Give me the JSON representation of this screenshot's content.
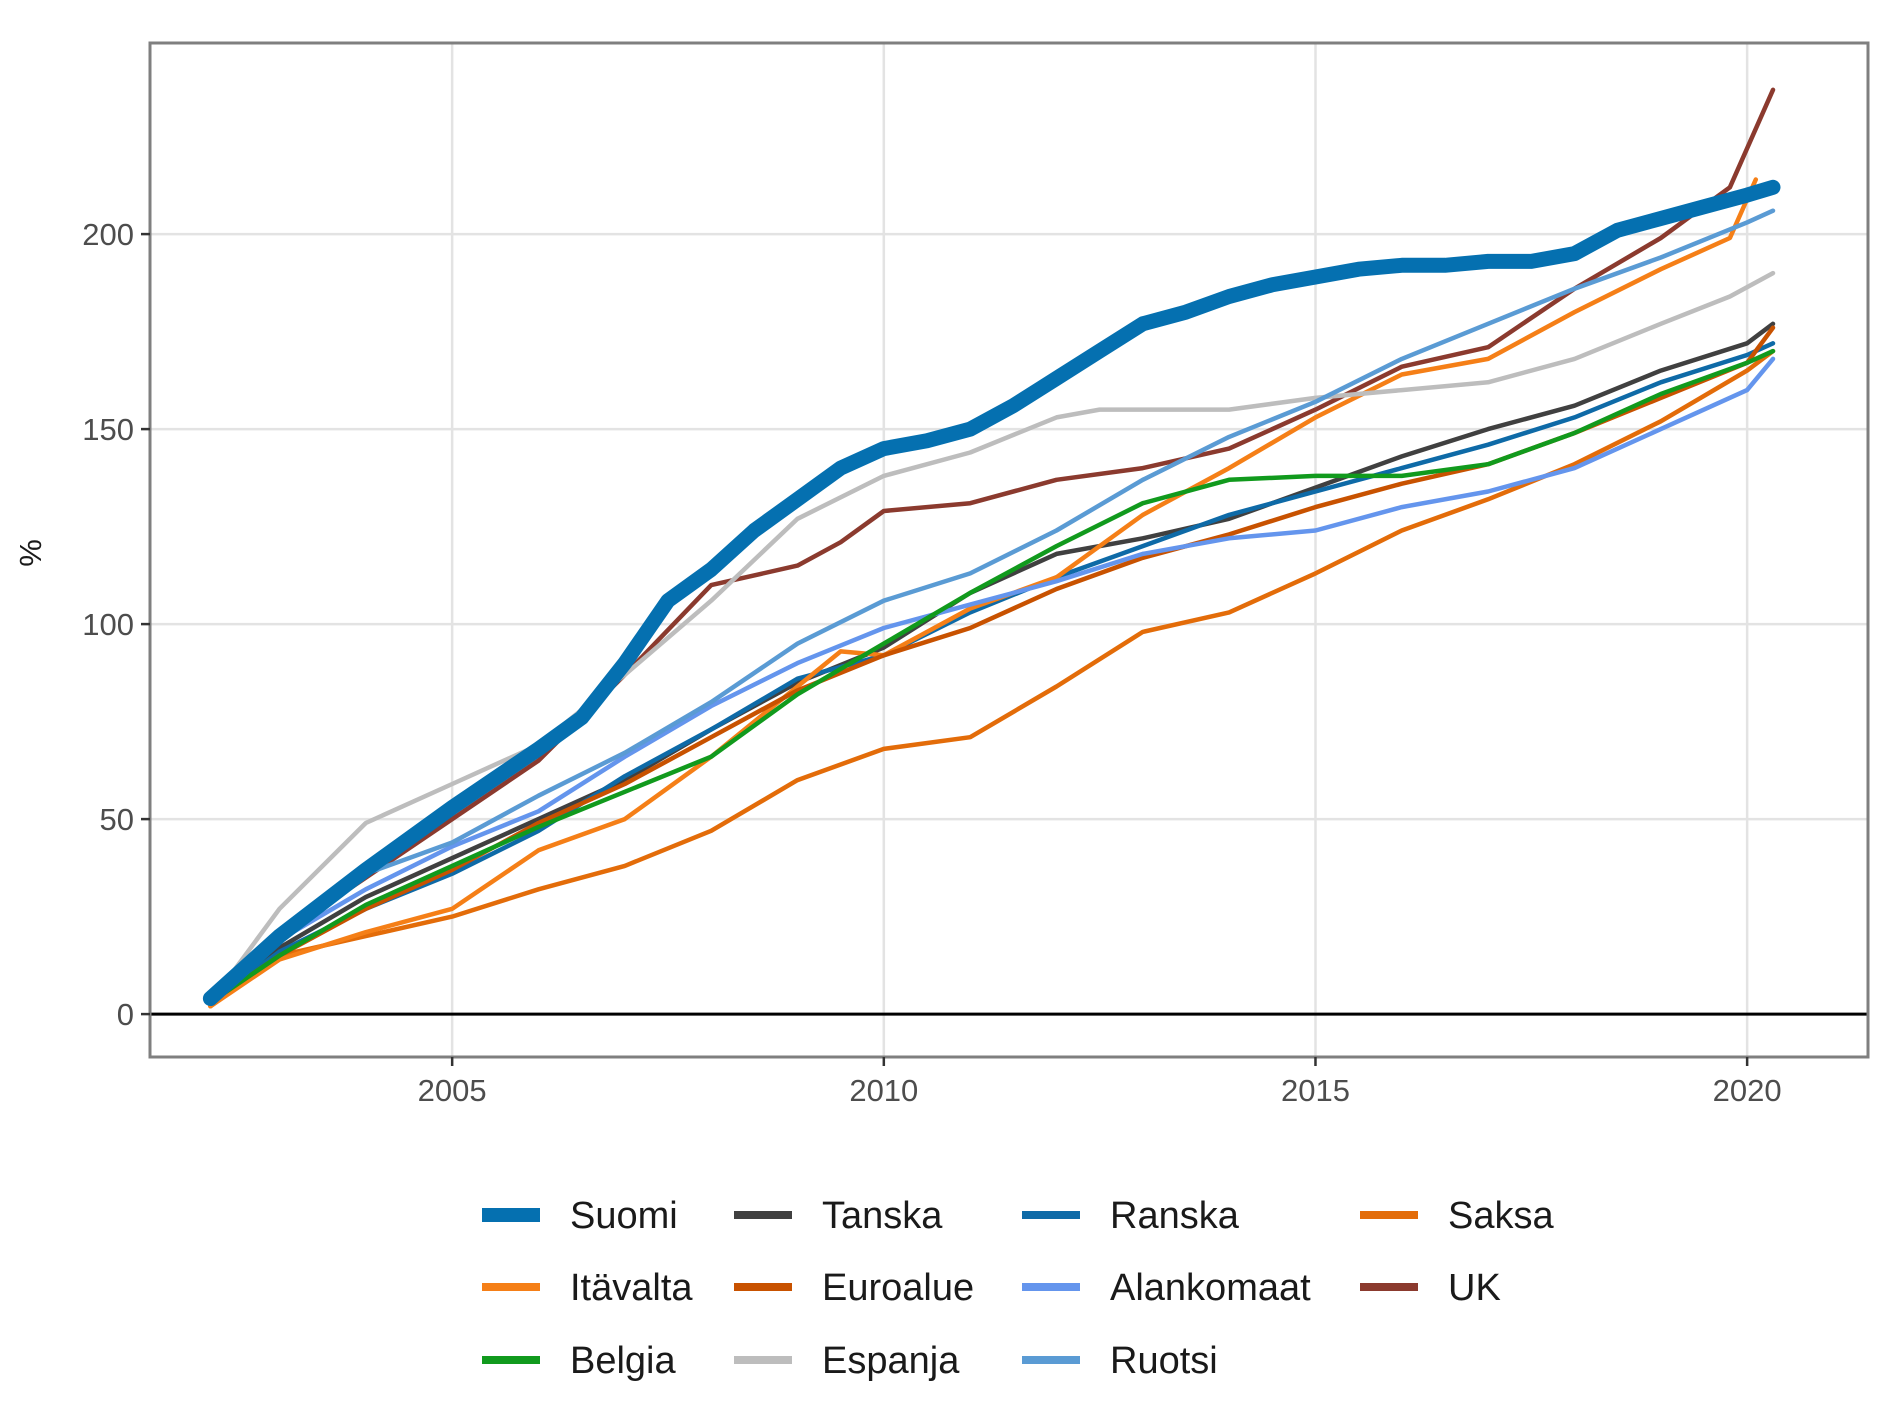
{
  "chart_data": {
    "type": "line",
    "title": "",
    "xlabel": "",
    "ylabel": "%",
    "xlim": [
      2001.5,
      2021.4
    ],
    "ylim": [
      -11,
      249
    ],
    "x_ticks": [
      2005,
      2010,
      2015,
      2020
    ],
    "x_tick_labels": [
      "2005",
      "2010",
      "2015",
      "2020"
    ],
    "y_ticks": [
      0,
      50,
      100,
      150,
      200
    ],
    "y_tick_labels": [
      "0",
      "50",
      "100",
      "150",
      "200"
    ],
    "grid": true,
    "reference_line": 0,
    "legend_position": "bottom",
    "series": [
      {
        "name": "Suomi",
        "color": "#0570b0",
        "emphasis": true,
        "x": [
          2002.2,
          2003,
          2004,
          2005,
          2006,
          2006.5,
          2007,
          2007.5,
          2008,
          2008.5,
          2009,
          2009.5,
          2010,
          2010.5,
          2011,
          2011.5,
          2012,
          2012.5,
          2013,
          2013.5,
          2014,
          2014.5,
          2015,
          2015.5,
          2016,
          2016.5,
          2017,
          2017.5,
          2018,
          2018.5,
          2019,
          2019.5,
          2020,
          2020.3
        ],
        "values": [
          4,
          20,
          37,
          53,
          68,
          76,
          90,
          106,
          114,
          124,
          132,
          140,
          145,
          147,
          150,
          156,
          163,
          170,
          177,
          180,
          184,
          187,
          189,
          191,
          192,
          192,
          193,
          193,
          195,
          201,
          204,
          207,
          210,
          212
        ]
      },
      {
        "name": "Tanska",
        "color": "#404040",
        "x": [
          2002.2,
          2003,
          2004,
          2005,
          2006,
          2007,
          2008,
          2009,
          2010,
          2011,
          2012,
          2013,
          2014,
          2015,
          2016,
          2017,
          2018,
          2019,
          2020,
          2020.3
        ],
        "values": [
          3,
          17,
          30,
          40,
          50,
          60,
          73,
          85,
          94,
          108,
          118,
          122,
          127,
          135,
          143,
          150,
          156,
          165,
          172,
          177
        ]
      },
      {
        "name": "Ranska",
        "color": "#0e6aa7",
        "x": [
          2002.2,
          2003,
          2004,
          2005,
          2006,
          2007,
          2008,
          2009,
          2010,
          2011,
          2012,
          2013,
          2014,
          2015,
          2016,
          2017,
          2018,
          2019,
          2020,
          2020.3
        ],
        "values": [
          3,
          16,
          27,
          36,
          47,
          61,
          73,
          86,
          92,
          103,
          112,
          120,
          128,
          134,
          140,
          146,
          153,
          162,
          169,
          172
        ]
      },
      {
        "name": "Saksa",
        "color": "#e36c09",
        "x": [
          2002.2,
          2003,
          2004,
          2005,
          2006,
          2007,
          2008,
          2009,
          2010,
          2011,
          2012,
          2013,
          2014,
          2015,
          2016,
          2017,
          2018,
          2019,
          2020,
          2020.3
        ],
        "values": [
          2,
          15,
          20,
          25,
          32,
          38,
          47,
          60,
          68,
          71,
          84,
          98,
          103,
          113,
          124,
          132,
          141,
          152,
          165,
          170
        ]
      },
      {
        "name": "Itävalta",
        "color": "#f57f17",
        "x": [
          2002.2,
          2003,
          2004,
          2005,
          2006,
          2007,
          2008,
          2009,
          2009.5,
          2010,
          2011,
          2012,
          2013,
          2014,
          2015,
          2016,
          2017,
          2018,
          2019,
          2019.8,
          2020.1
        ],
        "values": [
          2,
          14,
          21,
          27,
          42,
          50,
          66,
          84,
          93,
          92,
          104,
          112,
          128,
          140,
          153,
          164,
          168,
          180,
          191,
          199,
          214
        ]
      },
      {
        "name": "Euroalue",
        "color": "#c85200",
        "x": [
          2002.2,
          2003,
          2004,
          2005,
          2006,
          2007,
          2008,
          2009,
          2010,
          2011,
          2012,
          2013,
          2014,
          2015,
          2016,
          2017,
          2018,
          2019,
          2020,
          2020.3
        ],
        "values": [
          3,
          15,
          27,
          37,
          49,
          59,
          71,
          83,
          92,
          99,
          109,
          117,
          123,
          130,
          136,
          141,
          149,
          158,
          167,
          176
        ]
      },
      {
        "name": "Alankomaat",
        "color": "#6495ed",
        "x": [
          2002.2,
          2003,
          2004,
          2005,
          2006,
          2007,
          2008,
          2009,
          2010,
          2011,
          2012,
          2013,
          2014,
          2015,
          2016,
          2017,
          2018,
          2019,
          2020,
          2020.3
        ],
        "values": [
          4,
          19,
          32,
          43,
          52,
          66,
          79,
          90,
          99,
          105,
          111,
          118,
          122,
          124,
          130,
          134,
          140,
          150,
          160,
          168
        ]
      },
      {
        "name": "UK",
        "color": "#8b3a2e",
        "x": [
          2002.2,
          2003,
          2004,
          2005,
          2006,
          2007,
          2008,
          2009,
          2009.5,
          2010,
          2011,
          2012,
          2013,
          2014,
          2015,
          2016,
          2017,
          2018,
          2019,
          2019.8,
          2020.3
        ],
        "values": [
          3,
          20,
          35,
          50,
          65,
          87,
          110,
          115,
          121,
          129,
          131,
          137,
          140,
          145,
          155,
          166,
          171,
          186,
          199,
          212,
          237
        ]
      },
      {
        "name": "Belgia",
        "color": "#119a1d",
        "x": [
          2002.2,
          2003,
          2004,
          2005,
          2006,
          2007,
          2008,
          2009,
          2010,
          2011,
          2012,
          2013,
          2014,
          2015,
          2016,
          2017,
          2018,
          2019,
          2020,
          2020.3
        ],
        "values": [
          3,
          15,
          28,
          38,
          48,
          57,
          66,
          82,
          95,
          108,
          120,
          131,
          137,
          138,
          138,
          141,
          149,
          159,
          167,
          170
        ]
      },
      {
        "name": "Espanja",
        "color": "#bdbdbd",
        "x": [
          2002.2,
          2003,
          2004,
          2005,
          2006,
          2007,
          2008,
          2009,
          2010,
          2011,
          2012,
          2012.5,
          2013,
          2014,
          2015,
          2016,
          2017,
          2018,
          2019,
          2019.8,
          2020.3
        ],
        "values": [
          3,
          27,
          49,
          59,
          69,
          87,
          106,
          127,
          138,
          144,
          153,
          155,
          155,
          155,
          158,
          160,
          162,
          168,
          177,
          184,
          190
        ]
      },
      {
        "name": "Ruotsi",
        "color": "#5a9bd4",
        "x": [
          2002.2,
          2003,
          2004,
          2005,
          2006,
          2007,
          2008,
          2009,
          2010,
          2011,
          2012,
          2013,
          2014,
          2015,
          2016,
          2017,
          2018,
          2019,
          2020,
          2020.3
        ],
        "values": [
          4,
          20,
          36,
          44,
          56,
          67,
          80,
          95,
          106,
          113,
          124,
          137,
          148,
          157,
          168,
          177,
          186,
          194,
          203,
          206
        ]
      }
    ]
  },
  "legend": {
    "items": [
      "Suomi",
      "Itävalta",
      "Belgia",
      "Tanska",
      "Euroalue",
      "Espanja",
      "Ranska",
      "Alankomaat",
      "Ruotsi",
      "Saksa",
      "UK"
    ]
  }
}
